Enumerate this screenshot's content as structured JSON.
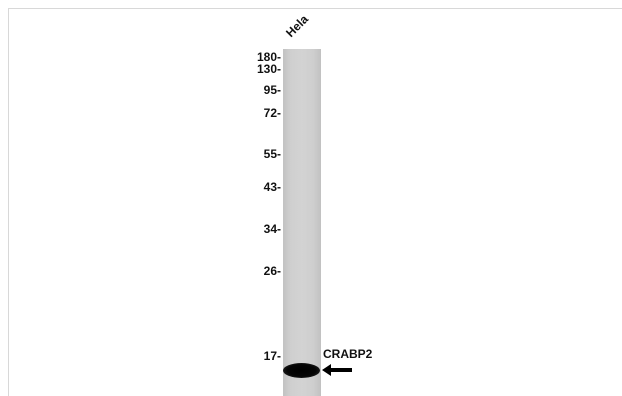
{
  "lane_label": "Hela",
  "markers": [
    {
      "label": "180-"
    },
    {
      "label": "130-"
    },
    {
      "label": "95-"
    },
    {
      "label": "72-"
    },
    {
      "label": "55-"
    },
    {
      "label": "43-"
    },
    {
      "label": "34-"
    },
    {
      "label": "26-"
    },
    {
      "label": "17-"
    }
  ],
  "band_label": "CRABP2"
}
